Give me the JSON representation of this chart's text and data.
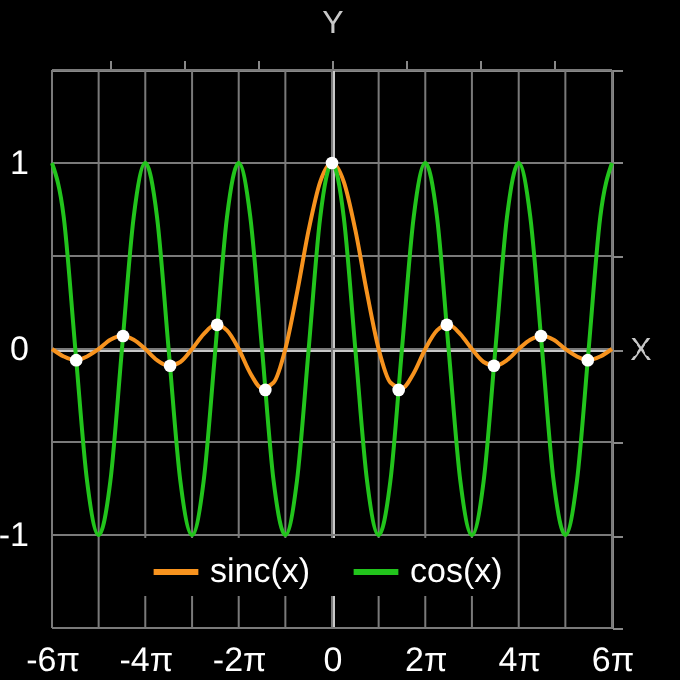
{
  "chart_data": {
    "type": "line",
    "xlabel": "X",
    "ylabel": "Y",
    "x": [
      -18.85,
      -18.06,
      -17.28,
      -16.49,
      -15.71,
      -14.92,
      -14.14,
      -13.35,
      -12.57,
      -11.78,
      -11.0,
      -10.21,
      -9.42,
      -8.64,
      -7.85,
      -7.07,
      -6.28,
      -5.5,
      -4.71,
      -3.93,
      -3.14,
      -2.36,
      -1.57,
      -0.79,
      0,
      0.79,
      1.57,
      2.36,
      3.14,
      3.93,
      4.71,
      5.5,
      6.28,
      7.07,
      7.85,
      8.64,
      9.42,
      10.21,
      11.0,
      11.78,
      12.57,
      13.35,
      14.14,
      14.92,
      15.71,
      16.49,
      17.28,
      18.06,
      18.85
    ],
    "series": [
      {
        "name": "sinc(x)",
        "color": "#f7931e",
        "values": [
          0,
          -0.04,
          -0.06,
          -0.04,
          0,
          0.05,
          0.07,
          0.05,
          0,
          -0.06,
          -0.09,
          -0.07,
          0,
          0.08,
          0.13,
          0.1,
          0,
          -0.13,
          -0.21,
          -0.18,
          0,
          0.3,
          0.64,
          0.9,
          1,
          0.9,
          0.64,
          0.3,
          0,
          -0.18,
          -0.21,
          -0.13,
          0,
          0.1,
          0.13,
          0.08,
          0,
          -0.07,
          -0.09,
          -0.06,
          0,
          0.05,
          0.07,
          0.05,
          0,
          -0.04,
          -0.06,
          -0.04,
          0
        ]
      },
      {
        "name": "cos(x)",
        "color": "#22c41c",
        "values": [
          1,
          0.71,
          0,
          -0.71,
          -1,
          -0.71,
          0,
          0.71,
          1,
          0.71,
          0,
          -0.71,
          -1,
          -0.71,
          0,
          0.71,
          1,
          0.71,
          0,
          -0.71,
          -1,
          -0.71,
          0,
          0.71,
          1,
          0.71,
          0,
          -0.71,
          -1,
          -0.71,
          0,
          0.71,
          1,
          0.71,
          0,
          -0.71,
          -1,
          -0.71,
          0,
          0.71,
          1,
          0.71,
          0,
          -0.71,
          -1,
          -0.71,
          0,
          0.71,
          1
        ]
      },
      {
        "type": "scatter",
        "marker": "circle",
        "color": "#ffffff",
        "x": [
          -17.22,
          -14.07,
          -10.9,
          -7.73,
          -4.49,
          0,
          4.49,
          7.73,
          10.9,
          14.07,
          17.22
        ],
        "values": [
          -0.06,
          0.07,
          -0.09,
          0.13,
          -0.22,
          1,
          -0.22,
          0.13,
          -0.09,
          0.07,
          -0.06
        ]
      }
    ],
    "xlim": [
      -18.85,
      18.85
    ],
    "xticks": [
      {
        "value": -18.85,
        "label": "-6π"
      },
      {
        "value": -15.71,
        "label": null
      },
      {
        "value": -12.57,
        "label": "-4π"
      },
      {
        "value": -9.42,
        "label": null
      },
      {
        "value": -6.28,
        "label": "-2π"
      },
      {
        "value": -3.14,
        "label": null
      },
      0,
      {
        "value": 3.14,
        "label": null
      },
      {
        "value": 6.28,
        "label": "2π"
      },
      {
        "value": 9.42,
        "label": null
      },
      {
        "value": 12.57,
        "label": "4π"
      },
      {
        "value": 15.71,
        "label": null
      },
      {
        "value": 18.85,
        "label": "6π"
      }
    ],
    "ylim": [
      -1.5,
      1.5
    ],
    "yticks": [
      {
        "value": -1.5,
        "label": null
      },
      -1,
      {
        "value": -0.5,
        "label": null
      },
      0,
      {
        "value": 0.5,
        "label": null
      },
      1,
      {
        "value": 1.5,
        "label": null
      }
    ],
    "grid": true,
    "legend": "bottom"
  }
}
